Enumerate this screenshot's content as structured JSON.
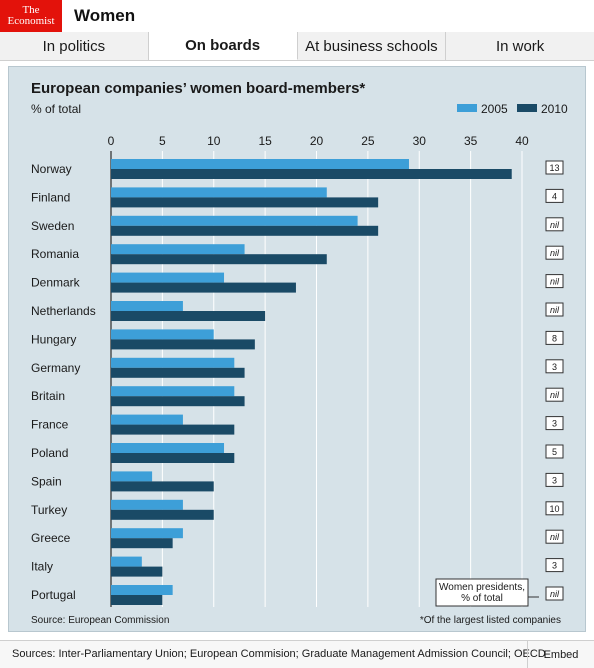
{
  "brand": {
    "line1": "The",
    "line2": "Economist"
  },
  "page_title": "Women",
  "tabs": [
    {
      "label": "In politics",
      "active": false
    },
    {
      "label": "On boards",
      "active": true
    },
    {
      "label": "At business schools",
      "active": false
    },
    {
      "label": "In work",
      "active": false
    }
  ],
  "footer": {
    "sources": "Sources: Inter-Parliamentary Union; European Commision; Graduate Management Admission Council; OECD",
    "embed": "Embed"
  },
  "colors": {
    "series_2005": "#3d9fd8",
    "series_2010": "#1a4a66",
    "panel": "#d6e2e8",
    "brand": "#e3120b"
  },
  "chart_data": {
    "type": "bar",
    "orientation": "horizontal",
    "title": "European companies’ women board-members*",
    "subtitle": "% of total",
    "xlim": [
      0,
      40
    ],
    "ticks": [
      0,
      5,
      10,
      15,
      20,
      25,
      30,
      35,
      40
    ],
    "categories": [
      "Norway",
      "Finland",
      "Sweden",
      "Romania",
      "Denmark",
      "Netherlands",
      "Hungary",
      "Germany",
      "Britain",
      "France",
      "Poland",
      "Spain",
      "Turkey",
      "Greece",
      "Italy",
      "Portugal"
    ],
    "series": [
      {
        "name": "2005",
        "values": [
          29,
          21,
          24,
          13,
          11,
          7,
          10,
          12,
          12,
          7,
          11,
          4,
          7,
          7,
          3,
          6
        ]
      },
      {
        "name": "2010",
        "values": [
          39,
          26,
          26,
          21,
          18,
          15,
          14,
          13,
          13,
          12,
          12,
          10,
          10,
          6,
          5,
          5
        ]
      }
    ],
    "legend_position": "top-right",
    "side_values": {
      "label": "Women presidents, % of total",
      "values": [
        "13",
        "4",
        "nil",
        "nil",
        "nil",
        "nil",
        "8",
        "3",
        "nil",
        "3",
        "5",
        "3",
        "10",
        "nil",
        "3",
        "nil"
      ]
    },
    "source": "Source: European Commission",
    "footnote": "*Of the largest listed companies"
  }
}
